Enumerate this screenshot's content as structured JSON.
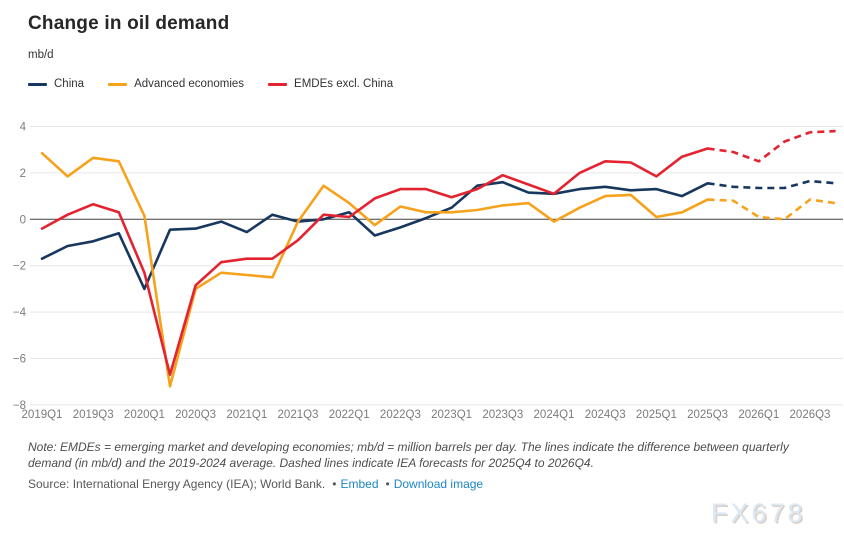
{
  "page": {
    "title": "Change in oil demand",
    "y_unit_label": "mb/d",
    "note": "Note: EMDEs = emerging market and developing economies; mb/d = million barrels per day. The lines indicate the difference between quarterly demand (in mb/d) and the 2019-2024 average. Dashed lines indicate IEA forecasts for 2025Q4 to 2026Q4.",
    "source_text": "Source: International Energy Agency (IEA); World Bank.",
    "bullet": "•",
    "links": {
      "embed": "Embed",
      "download": "Download image"
    },
    "watermark": "FX678"
  },
  "colors": {
    "china": "#17375e",
    "advanced": "#f6a21c",
    "emde": "#e32330",
    "grid": "#e7e7e7",
    "zero_line": "#404040",
    "tick_text": "#757575",
    "link": "#1c86c8"
  },
  "chart_data": {
    "type": "line",
    "title": "Change in oil demand",
    "ylabel": "mb/d",
    "xlabel": "",
    "ylim": [
      -8,
      4
    ],
    "grid": true,
    "legend_position": "top-left",
    "y_ticks": [
      4,
      2,
      0,
      -2,
      -4,
      -6,
      -8
    ],
    "x_quarters": [
      "2019Q1",
      "2019Q2",
      "2019Q3",
      "2019Q4",
      "2020Q1",
      "2020Q2",
      "2020Q3",
      "2020Q4",
      "2021Q1",
      "2021Q2",
      "2021Q3",
      "2021Q4",
      "2022Q1",
      "2022Q2",
      "2022Q3",
      "2022Q4",
      "2023Q1",
      "2023Q2",
      "2023Q3",
      "2023Q4",
      "2024Q1",
      "2024Q2",
      "2024Q3",
      "2024Q4",
      "2025Q1",
      "2025Q2",
      "2025Q3",
      "2025Q4",
      "2026Q1",
      "2026Q2",
      "2026Q3",
      "2026Q4"
    ],
    "x_tick_labels": [
      "2019Q1",
      "2019Q3",
      "2020Q1",
      "2020Q3",
      "2021Q1",
      "2021Q3",
      "2022Q1",
      "2022Q3",
      "2023Q1",
      "2023Q3",
      "2024Q1",
      "2024Q3",
      "2025Q1",
      "2025Q3",
      "2026Q1",
      "2026Q3"
    ],
    "forecast_start_index": 27,
    "forecast_note": "Dashed lines indicate IEA forecasts for 2025Q4 to 2026Q4",
    "series": [
      {
        "name": "China",
        "color": "#17375e",
        "values": [
          -1.7,
          -1.15,
          -0.95,
          -0.6,
          -3.0,
          -0.45,
          -0.4,
          -0.1,
          -0.55,
          0.2,
          -0.1,
          0.0,
          0.3,
          -0.7,
          -0.35,
          0.05,
          0.5,
          1.45,
          1.6,
          1.15,
          1.1,
          1.3,
          1.4,
          1.25,
          1.3,
          1.0,
          1.55,
          1.4,
          1.35,
          1.35,
          1.65,
          1.55
        ]
      },
      {
        "name": "Advanced economies",
        "color": "#f6a21c",
        "values": [
          2.85,
          1.85,
          2.65,
          2.5,
          0.15,
          -7.2,
          -3.0,
          -2.3,
          -2.4,
          -2.5,
          -0.1,
          1.45,
          0.7,
          -0.25,
          0.55,
          0.3,
          0.3,
          0.4,
          0.6,
          0.7,
          -0.1,
          0.5,
          1.0,
          1.05,
          0.1,
          0.3,
          0.85,
          0.8,
          0.1,
          0.0,
          0.85,
          0.7
        ]
      },
      {
        "name": "EMDEs excl. China",
        "color": "#e32330",
        "values": [
          -0.4,
          0.2,
          0.65,
          0.3,
          -2.3,
          -6.7,
          -2.85,
          -1.85,
          -1.7,
          -1.7,
          -0.9,
          0.2,
          0.1,
          0.9,
          1.3,
          1.3,
          0.95,
          1.3,
          1.9,
          1.5,
          1.1,
          2.0,
          2.5,
          2.45,
          1.85,
          2.7,
          3.05,
          2.9,
          2.5,
          3.35,
          3.75,
          3.8
        ]
      }
    ]
  }
}
